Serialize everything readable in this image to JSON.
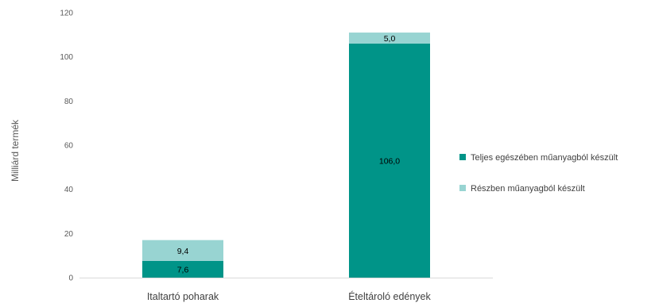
{
  "chart_data": {
    "type": "bar",
    "stacked": true,
    "categories": [
      "Italtartó poharak",
      "Ételtároló edények"
    ],
    "series": [
      {
        "name": "Teljes egészében műanyagból készült",
        "values": [
          7.6,
          106.0
        ],
        "labels": [
          "7,6",
          "106,0"
        ],
        "color": "#009488"
      },
      {
        "name": "Részben műanyagból készült",
        "values": [
          9.4,
          5.0
        ],
        "labels": [
          "9,4",
          "5,0"
        ],
        "color": "#98d4d2"
      }
    ],
    "title": "",
    "xlabel": "",
    "ylabel": "Milliárd termék",
    "ylim": [
      0,
      120
    ],
    "yticks": [
      "0",
      "20",
      "40",
      "60",
      "80",
      "100",
      "120"
    ],
    "grid": false,
    "legend_position": "right"
  }
}
